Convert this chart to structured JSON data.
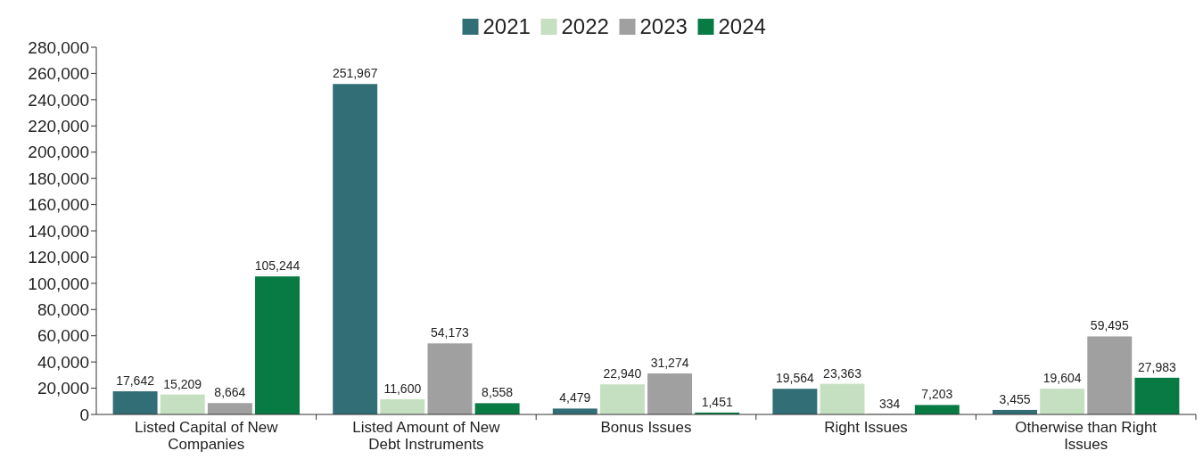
{
  "chart_data": {
    "type": "bar",
    "categories": [
      "Listed Capital of New Companies",
      "Listed Amount of New Debt Instruments",
      "Bonus Issues",
      "Right Issues",
      "Otherwise than Right Issues"
    ],
    "series": [
      {
        "name": "2021",
        "color": "#326e75",
        "values": [
          17642,
          251967,
          4479,
          19564,
          3455
        ],
        "value_labels": [
          "17,642",
          "251,967",
          "4,479",
          "19,564",
          "3,455"
        ]
      },
      {
        "name": "2022",
        "color": "#c5e0c0",
        "values": [
          15209,
          11600,
          22940,
          23363,
          19604
        ],
        "value_labels": [
          "15,209",
          "11,600",
          "22,940",
          "23,363",
          "19,604"
        ]
      },
      {
        "name": "2023",
        "color": "#a0a0a0",
        "values": [
          8664,
          54173,
          31274,
          334,
          59495
        ],
        "value_labels": [
          "8,664",
          "54,173",
          "31,274",
          "334",
          "59,495"
        ]
      },
      {
        "name": "2024",
        "color": "#087a43",
        "values": [
          105244,
          8558,
          1451,
          7203,
          27983
        ],
        "value_labels": [
          "105,244",
          "8,558",
          "1,451",
          "7,203",
          "27,983"
        ]
      }
    ],
    "ylim": [
      0,
      280000
    ],
    "yticks": [
      0,
      {
        "value": 20000,
        "label": "20,000"
      },
      {
        "value": 40000,
        "label": "40,000"
      },
      {
        "value": 60000,
        "label": "60,000"
      },
      {
        "value": 80000,
        "label": "80,000"
      },
      {
        "value": 100000,
        "label": "100,000"
      },
      {
        "value": 120000,
        "label": "120,000"
      },
      {
        "value": 140000,
        "label": "140,000"
      },
      {
        "value": 160000,
        "label": "160,000"
      },
      {
        "value": 180000,
        "label": "180,000"
      },
      {
        "value": 200000,
        "label": "200,000"
      },
      {
        "value": 220000,
        "label": "220,000"
      },
      {
        "value": 240000,
        "label": "240,000"
      },
      {
        "value": 260000,
        "label": "260,000"
      },
      {
        "value": 280000,
        "label": "280,000"
      }
    ],
    "legend": "top",
    "grid": false
  }
}
